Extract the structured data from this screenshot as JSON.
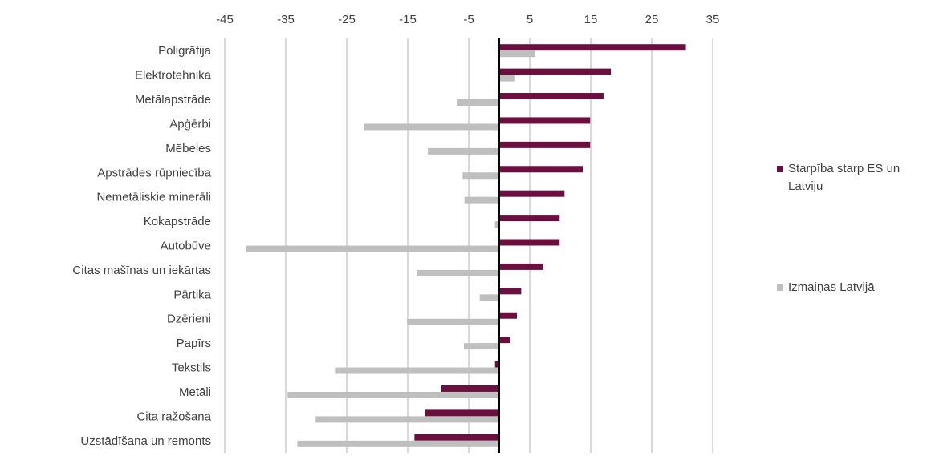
{
  "chart_data": {
    "type": "bar",
    "orientation": "horizontal",
    "title": "",
    "xlim": [
      -45,
      35
    ],
    "x_ticks": [
      "-45",
      "-35",
      "-25",
      "-15",
      "-5",
      "5",
      "15",
      "25",
      "35"
    ],
    "x_tick_values": [
      -45,
      -35,
      -25,
      -15,
      -5,
      5,
      15,
      25,
      35
    ],
    "grid": true,
    "legend_position": "right",
    "categories": [
      "Poligrāfija",
      "Elektrotehnika",
      "Metālapstrāde",
      "Apģērbi",
      "Mēbeles",
      "Apstrādes rūpniecība",
      "Nemetāliskie minerāli",
      "Kokapstrāde",
      "Autobūve",
      "Citas mašīnas un iekārtas",
      "Pārtika",
      "Dzērieni",
      "Papīrs",
      "Tekstils",
      "Metāli",
      "Cita ražošana",
      "Uzstādīšana un remonts"
    ],
    "series": [
      {
        "name": "Starpība starp ES un Latviju",
        "color": "#6b0f3f",
        "values": [
          30.6,
          18.3,
          17.1,
          14.9,
          14.9,
          13.7,
          10.7,
          9.9,
          9.9,
          7.2,
          3.6,
          2.9,
          1.8,
          -0.7,
          -9.5,
          -12.2,
          -13.9
        ]
      },
      {
        "name": "Izmaiņas Latvijā",
        "color": "#bfbfbf",
        "values": [
          5.9,
          2.6,
          -6.9,
          -22.2,
          -11.7,
          -6.0,
          -5.7,
          -0.7,
          -41.5,
          -13.5,
          -3.2,
          -15.1,
          -5.8,
          -26.8,
          -34.7,
          -30.1,
          -33.1
        ]
      }
    ]
  }
}
